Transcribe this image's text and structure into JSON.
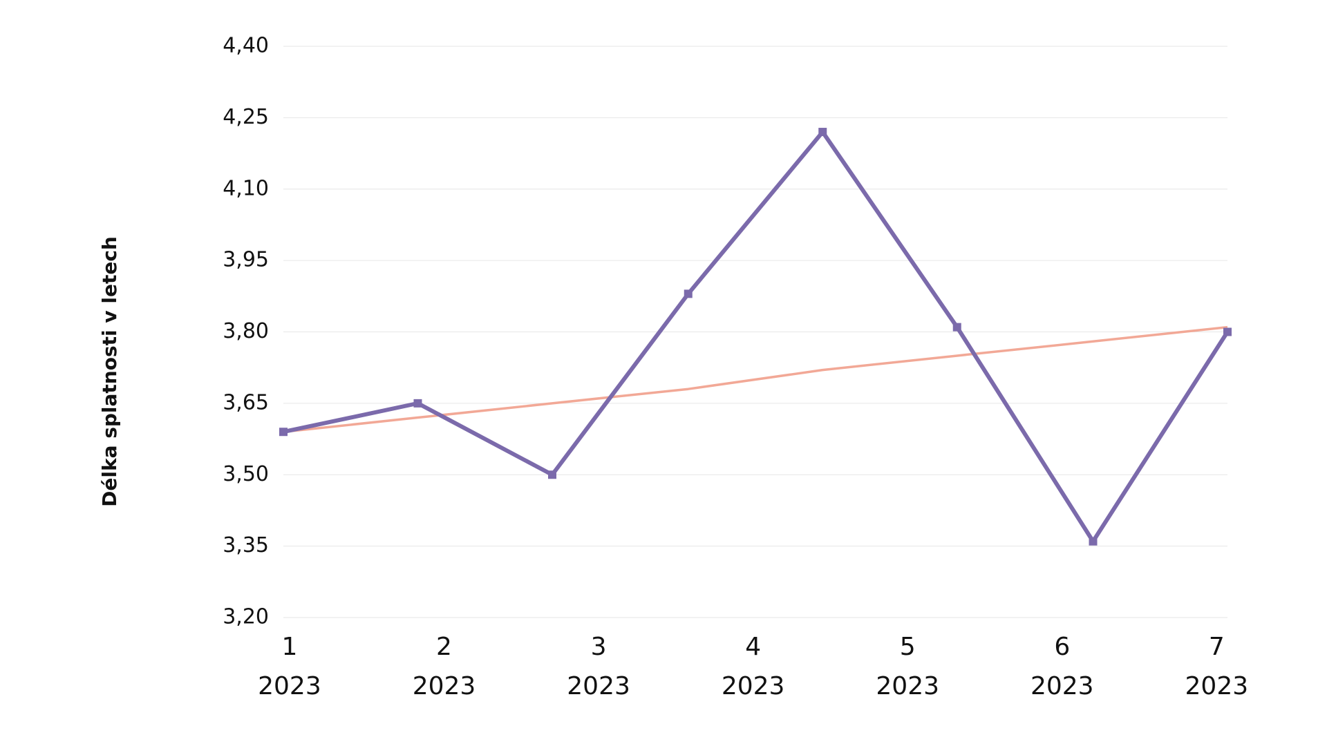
{
  "chart_data": {
    "type": "line",
    "y_label": "Délka splatnosti v letech",
    "x": [
      0.96,
      1.83,
      2.7,
      3.58,
      4.45,
      5.32,
      6.2,
      7.07
    ],
    "xlim": [
      0.96,
      7.07
    ],
    "xticks": [
      {
        "value": 1,
        "label": "1\n2023"
      },
      {
        "value": 2,
        "label": "2\n2023"
      },
      {
        "value": 3,
        "label": "3\n2023"
      },
      {
        "value": 4,
        "label": "4\n2023"
      },
      {
        "value": 5,
        "label": "5\n2023"
      },
      {
        "value": 6,
        "label": "6\n2023"
      },
      {
        "value": 7,
        "label": "7\n2023"
      }
    ],
    "ylim": [
      3.2,
      4.4
    ],
    "yticks": [
      {
        "value": 3.2,
        "label": "3,20"
      },
      {
        "value": 3.35,
        "label": "3,35"
      },
      {
        "value": 3.5,
        "label": "3,50"
      },
      {
        "value": 3.65,
        "label": "3,65"
      },
      {
        "value": 3.8,
        "label": "3,80"
      },
      {
        "value": 3.95,
        "label": "3,95"
      },
      {
        "value": 4.1,
        "label": "4,10"
      },
      {
        "value": 4.25,
        "label": "4,25"
      },
      {
        "value": 4.4,
        "label": "4,40"
      }
    ],
    "grid": true,
    "series": [
      {
        "color": "#7b6aab",
        "markers": true,
        "values": [
          3.59,
          3.65,
          3.5,
          3.88,
          4.22,
          3.81,
          3.36,
          3.8
        ]
      },
      {
        "color": "#f2a896",
        "markers": false,
        "values": [
          3.59,
          3.62,
          3.65,
          3.68,
          3.72,
          3.75,
          3.78,
          3.81
        ]
      }
    ]
  }
}
